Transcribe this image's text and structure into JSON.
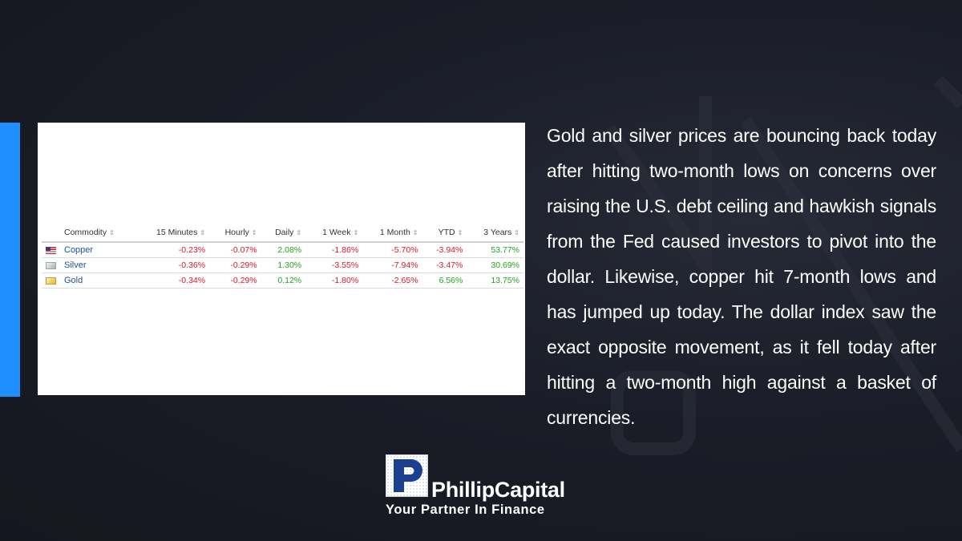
{
  "table": {
    "headers": [
      "Commodity",
      "15 Minutes",
      "Hourly",
      "Daily",
      "1 Week",
      "1 Month",
      "YTD",
      "3 Years"
    ],
    "sort_glyph": "⇕",
    "rows": [
      {
        "icon": "us-flag-icon",
        "name": "Copper",
        "values": [
          "-0.23%",
          "-0.07%",
          "2.08%",
          "-1.86%",
          "-5.70%",
          "-3.94%",
          "53.77%"
        ]
      },
      {
        "icon": "silver-icon",
        "name": "Silver",
        "values": [
          "-0.36%",
          "-0.29%",
          "1.30%",
          "-3.55%",
          "-7.94%",
          "-3.47%",
          "30.69%"
        ]
      },
      {
        "icon": "gold-icon",
        "name": "Gold",
        "values": [
          "-0.34%",
          "-0.29%",
          "0.12%",
          "-1.80%",
          "-2.65%",
          "6.56%",
          "13.75%"
        ]
      }
    ]
  },
  "body_text": "Gold and silver prices are bouncing back today after hitting two-month lows on concerns over raising the U.S. debt ceiling and hawkish signals from the Fed caused investors to pivot into the dollar. Likewise, copper hit 7-month lows and has jumped up today. The dollar index saw the exact opposite movement, as it fell today after hitting a two-month high against a basket of currencies.",
  "logo": {
    "brand": "PhillipCapital",
    "tagline": "Your Partner In Finance"
  },
  "colors": {
    "background": "#1a1d27",
    "accent": "#1f8fff",
    "negative": "#e0162b",
    "positive": "#21a51c",
    "link": "#1f4f9a"
  }
}
